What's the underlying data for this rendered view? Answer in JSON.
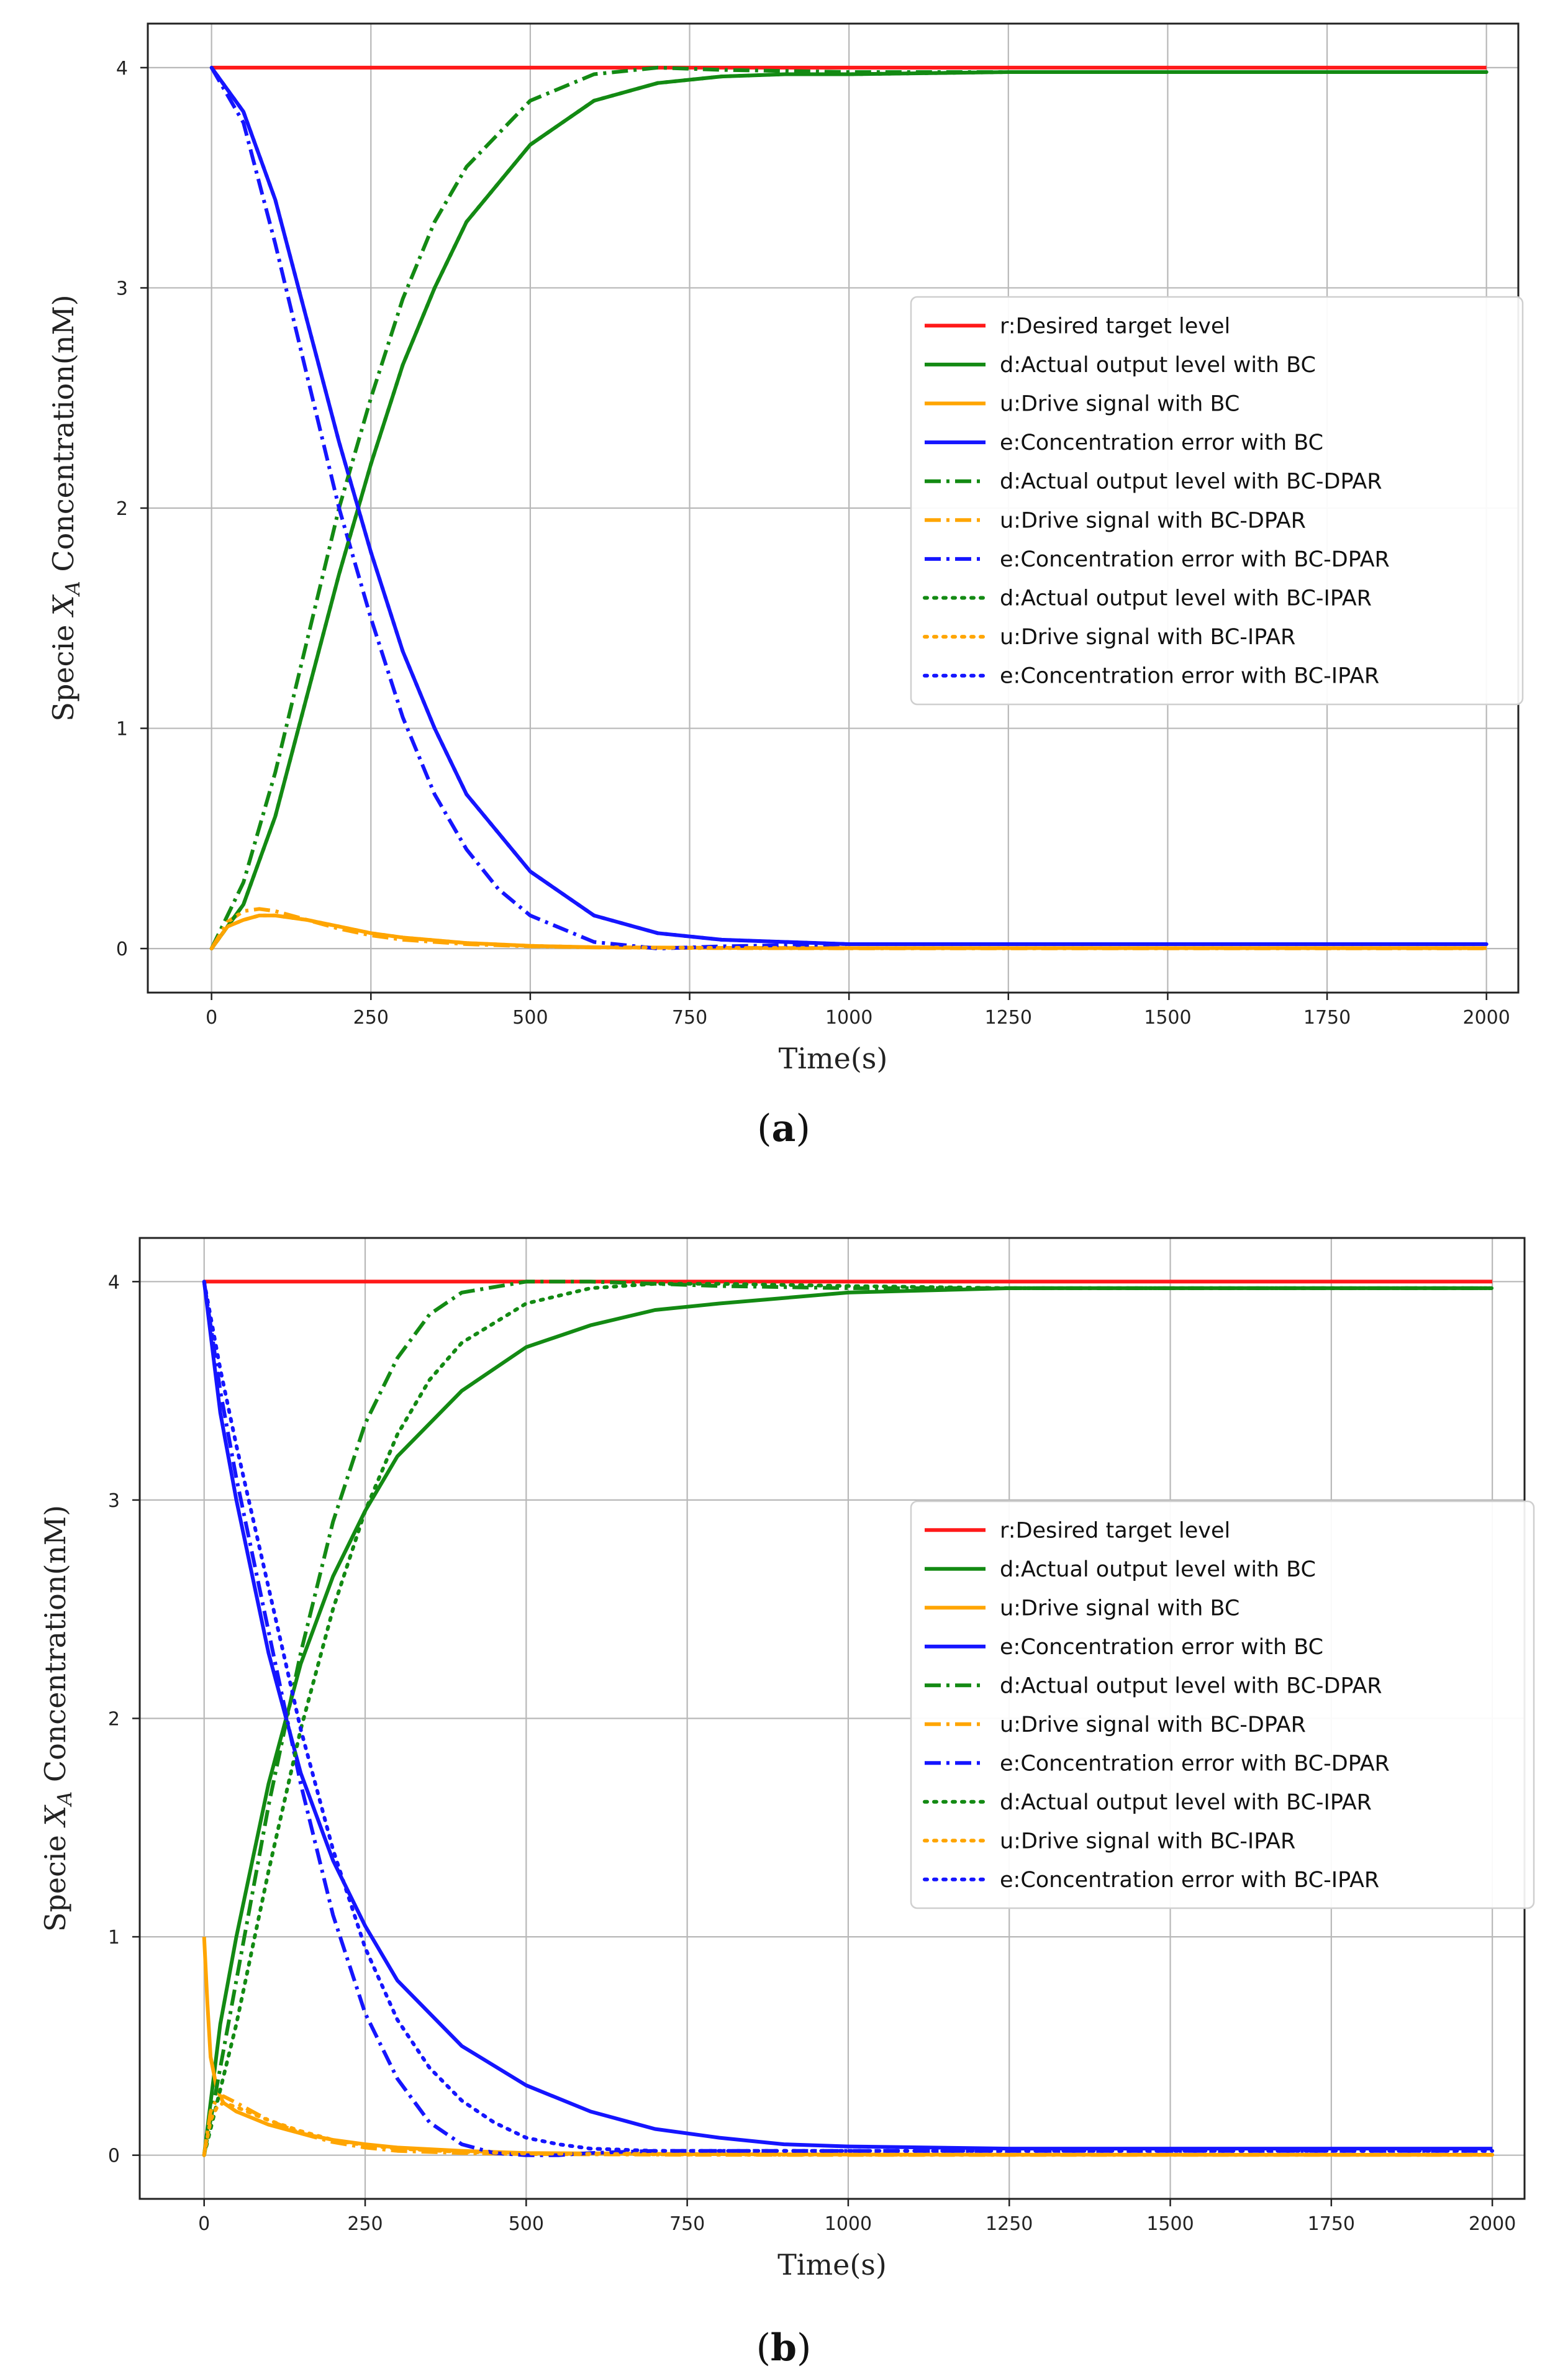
{
  "captions": [
    "(a)",
    "(b)"
  ],
  "chart_data": [
    {
      "panel": "a",
      "type": "line",
      "title": "",
      "xlabel": "Time(s)",
      "ylabel": "Specie X_A Concentration(nM)",
      "ylabel_parts": {
        "prefix": "Specie ",
        "symbol": "X",
        "subscript": "A",
        "suffix": " Concentration(nM)"
      },
      "xlim": [
        -100,
        2050
      ],
      "ylim": [
        -0.2,
        4.2
      ],
      "xticks": [
        0,
        250,
        500,
        750,
        1000,
        1250,
        1500,
        1750,
        2000
      ],
      "yticks": [
        0,
        1,
        2,
        3,
        4
      ],
      "grid": true,
      "legend_position": "center-right",
      "series": [
        {
          "name": "r:Desired target level",
          "color": "#ff1a1a",
          "style": "solid",
          "x": [
            0,
            2000
          ],
          "y": [
            4,
            4
          ]
        },
        {
          "name": "d:Actual output level with BC",
          "color": "#138a13",
          "style": "solid",
          "x": [
            0,
            50,
            100,
            150,
            200,
            250,
            300,
            350,
            400,
            500,
            600,
            700,
            800,
            900,
            1000,
            1250,
            1500,
            1750,
            2000
          ],
          "y": [
            0,
            0.2,
            0.6,
            1.15,
            1.7,
            2.2,
            2.65,
            3.0,
            3.3,
            3.65,
            3.85,
            3.93,
            3.96,
            3.97,
            3.97,
            3.98,
            3.98,
            3.98,
            3.98
          ]
        },
        {
          "name": "u:Drive signal with BC",
          "color": "#ffa500",
          "style": "solid",
          "x": [
            0,
            25,
            50,
            75,
            100,
            150,
            200,
            250,
            300,
            400,
            500,
            600,
            800,
            1000,
            1500,
            2000
          ],
          "y": [
            0,
            0.1,
            0.13,
            0.15,
            0.15,
            0.13,
            0.1,
            0.07,
            0.05,
            0.025,
            0.012,
            0.006,
            0.003,
            0.002,
            0.002,
            0.002
          ]
        },
        {
          "name": "e:Concentration error with BC",
          "color": "#1515ff",
          "style": "solid",
          "x": [
            0,
            50,
            100,
            150,
            200,
            250,
            300,
            350,
            400,
            500,
            600,
            700,
            800,
            900,
            1000,
            1250,
            1500,
            1750,
            2000
          ],
          "y": [
            4,
            3.8,
            3.4,
            2.85,
            2.3,
            1.8,
            1.35,
            1.0,
            0.7,
            0.35,
            0.15,
            0.07,
            0.04,
            0.03,
            0.02,
            0.02,
            0.02,
            0.02,
            0.02
          ]
        },
        {
          "name": "d:Actual output level with BC-DPAR",
          "color": "#138a13",
          "style": "dashdot",
          "x": [
            0,
            50,
            100,
            150,
            200,
            250,
            300,
            350,
            400,
            500,
            600,
            700,
            800,
            1000,
            1250,
            1500,
            1750,
            2000
          ],
          "y": [
            0,
            0.3,
            0.8,
            1.4,
            2.0,
            2.5,
            2.95,
            3.3,
            3.55,
            3.85,
            3.97,
            4.0,
            3.99,
            3.98,
            3.98,
            3.98,
            3.98,
            3.98
          ]
        },
        {
          "name": "u:Drive signal with BC-DPAR",
          "color": "#ffa500",
          "style": "dashdot",
          "x": [
            0,
            25,
            50,
            75,
            100,
            150,
            200,
            250,
            300,
            400,
            500,
            600,
            800,
            1000,
            1500,
            2000
          ],
          "y": [
            0,
            0.12,
            0.17,
            0.18,
            0.17,
            0.13,
            0.09,
            0.06,
            0.04,
            0.02,
            0.01,
            0.005,
            0.002,
            0.001,
            0.001,
            0.001
          ]
        },
        {
          "name": "e:Concentration error with BC-DPAR",
          "color": "#1515ff",
          "style": "dashdot",
          "x": [
            0,
            50,
            100,
            150,
            200,
            250,
            300,
            350,
            400,
            450,
            500,
            600,
            700,
            800,
            1000,
            1250,
            1500,
            1750,
            2000
          ],
          "y": [
            4,
            3.75,
            3.2,
            2.6,
            2.0,
            1.5,
            1.05,
            0.7,
            0.45,
            0.27,
            0.15,
            0.03,
            0.0,
            0.01,
            0.02,
            0.02,
            0.02,
            0.02,
            0.02
          ]
        },
        {
          "name": "d:Actual output level with BC-IPAR",
          "color": "#138a13",
          "style": "dotted",
          "x": [
            0,
            50,
            100,
            150,
            200,
            250,
            300,
            350,
            400,
            500,
            600,
            700,
            800,
            900,
            1000,
            1250,
            1500,
            1750,
            2000
          ],
          "y": [
            0,
            0.2,
            0.6,
            1.15,
            1.7,
            2.2,
            2.65,
            3.0,
            3.3,
            3.65,
            3.85,
            3.93,
            3.96,
            3.97,
            3.97,
            3.98,
            3.98,
            3.98,
            3.98
          ]
        },
        {
          "name": "u:Drive signal with BC-IPAR",
          "color": "#ffa500",
          "style": "dotted",
          "x": [
            0,
            25,
            50,
            75,
            100,
            150,
            200,
            250,
            300,
            400,
            500,
            600,
            800,
            1000,
            1500,
            2000
          ],
          "y": [
            0,
            0.1,
            0.13,
            0.15,
            0.15,
            0.13,
            0.1,
            0.07,
            0.05,
            0.025,
            0.012,
            0.006,
            0.003,
            0.002,
            0.002,
            0.002
          ]
        },
        {
          "name": "e:Concentration error with BC-IPAR",
          "color": "#1515ff",
          "style": "dotted",
          "x": [
            0,
            50,
            100,
            150,
            200,
            250,
            300,
            350,
            400,
            500,
            600,
            700,
            800,
            900,
            1000,
            1250,
            1500,
            1750,
            2000
          ],
          "y": [
            4,
            3.8,
            3.4,
            2.85,
            2.3,
            1.8,
            1.35,
            1.0,
            0.7,
            0.35,
            0.15,
            0.07,
            0.04,
            0.03,
            0.02,
            0.02,
            0.02,
            0.02,
            0.02
          ]
        }
      ]
    },
    {
      "panel": "b",
      "type": "line",
      "title": "",
      "xlabel": "Time(s)",
      "ylabel": "Specie X_A Concentration(nM)",
      "ylabel_parts": {
        "prefix": "Specie ",
        "symbol": "X",
        "subscript": "A",
        "suffix": " Concentration(nM)"
      },
      "xlim": [
        -100,
        2050
      ],
      "ylim": [
        -0.2,
        4.2
      ],
      "xticks": [
        0,
        250,
        500,
        750,
        1000,
        1250,
        1500,
        1750,
        2000
      ],
      "yticks": [
        0,
        1,
        2,
        3,
        4
      ],
      "grid": true,
      "legend_position": "center-right",
      "series": [
        {
          "name": "r:Desired target level",
          "color": "#ff1a1a",
          "style": "solid",
          "x": [
            0,
            2000
          ],
          "y": [
            4,
            4
          ]
        },
        {
          "name": "d:Actual output level with BC",
          "color": "#138a13",
          "style": "solid",
          "x": [
            0,
            25,
            50,
            100,
            150,
            200,
            250,
            300,
            400,
            500,
            600,
            700,
            800,
            1000,
            1250,
            1500,
            1750,
            2000
          ],
          "y": [
            0,
            0.6,
            1.0,
            1.7,
            2.25,
            2.65,
            2.95,
            3.2,
            3.5,
            3.7,
            3.8,
            3.87,
            3.9,
            3.95,
            3.97,
            3.97,
            3.97,
            3.97
          ]
        },
        {
          "name": "u:Drive signal with BC",
          "color": "#ffa500",
          "style": "solid",
          "x": [
            0,
            5,
            10,
            20,
            30,
            50,
            75,
            100,
            150,
            200,
            250,
            300,
            400,
            500,
            750,
            1000,
            1500,
            2000
          ],
          "y": [
            1.0,
            0.7,
            0.45,
            0.3,
            0.24,
            0.2,
            0.17,
            0.14,
            0.1,
            0.07,
            0.05,
            0.035,
            0.02,
            0.01,
            0.005,
            0.003,
            0.002,
            0.002
          ]
        },
        {
          "name": "e:Concentration error with BC",
          "color": "#1515ff",
          "style": "solid",
          "x": [
            0,
            25,
            50,
            100,
            150,
            200,
            250,
            300,
            400,
            500,
            600,
            700,
            800,
            900,
            1000,
            1250,
            1500,
            1750,
            2000
          ],
          "y": [
            4,
            3.4,
            3.0,
            2.3,
            1.75,
            1.35,
            1.05,
            0.8,
            0.5,
            0.32,
            0.2,
            0.12,
            0.08,
            0.05,
            0.04,
            0.03,
            0.03,
            0.03,
            0.03
          ]
        },
        {
          "name": "d:Actual output level with BC-DPAR",
          "color": "#138a13",
          "style": "dashdot",
          "x": [
            0,
            25,
            50,
            100,
            150,
            200,
            250,
            300,
            350,
            400,
            500,
            600,
            700,
            800,
            1000,
            1250,
            1500,
            1750,
            2000
          ],
          "y": [
            0,
            0.4,
            0.8,
            1.6,
            2.3,
            2.9,
            3.35,
            3.65,
            3.85,
            3.95,
            4.0,
            4.0,
            3.99,
            3.98,
            3.97,
            3.97,
            3.97,
            3.97,
            3.97
          ]
        },
        {
          "name": "u:Drive signal with BC-DPAR",
          "color": "#ffa500",
          "style": "dashdot",
          "x": [
            0,
            10,
            20,
            30,
            50,
            75,
            100,
            150,
            200,
            250,
            300,
            400,
            500,
            750,
            1000,
            1500,
            2000
          ],
          "y": [
            0,
            0.2,
            0.26,
            0.27,
            0.24,
            0.2,
            0.16,
            0.1,
            0.06,
            0.035,
            0.02,
            0.01,
            0.005,
            0.002,
            0.001,
            0.001,
            0.001
          ]
        },
        {
          "name": "e:Concentration error with BC-DPAR",
          "color": "#1515ff",
          "style": "dashdot",
          "x": [
            0,
            25,
            50,
            100,
            150,
            200,
            250,
            300,
            350,
            400,
            450,
            500,
            550,
            600,
            700,
            800,
            1000,
            1250,
            1500,
            1750,
            2000
          ],
          "y": [
            4,
            3.5,
            3.1,
            2.4,
            1.7,
            1.1,
            0.65,
            0.35,
            0.15,
            0.05,
            0.01,
            0.0,
            0.0,
            0.01,
            0.02,
            0.02,
            0.02,
            0.02,
            0.02,
            0.02,
            0.02
          ]
        },
        {
          "name": "d:Actual output level with BC-IPAR",
          "color": "#138a13",
          "style": "dotted",
          "x": [
            0,
            25,
            50,
            100,
            150,
            200,
            250,
            300,
            350,
            400,
            500,
            600,
            700,
            800,
            1000,
            1250,
            1500,
            1750,
            2000
          ],
          "y": [
            0,
            0.3,
            0.6,
            1.3,
            1.95,
            2.5,
            2.95,
            3.3,
            3.55,
            3.72,
            3.9,
            3.97,
            3.99,
            3.99,
            3.98,
            3.97,
            3.97,
            3.97,
            3.97
          ]
        },
        {
          "name": "u:Drive signal with BC-IPAR",
          "color": "#ffa500",
          "style": "dotted",
          "x": [
            0,
            10,
            20,
            30,
            50,
            75,
            100,
            150,
            200,
            250,
            300,
            400,
            500,
            750,
            1000,
            1500,
            2000
          ],
          "y": [
            0,
            0.16,
            0.22,
            0.24,
            0.22,
            0.19,
            0.16,
            0.11,
            0.07,
            0.045,
            0.03,
            0.015,
            0.008,
            0.003,
            0.002,
            0.002,
            0.002
          ]
        },
        {
          "name": "e:Concentration error with BC-IPAR",
          "color": "#1515ff",
          "style": "dotted",
          "x": [
            0,
            25,
            50,
            100,
            150,
            200,
            250,
            300,
            350,
            400,
            450,
            500,
            550,
            600,
            700,
            800,
            1000,
            1250,
            1500,
            1750,
            2000
          ],
          "y": [
            4,
            3.6,
            3.25,
            2.6,
            1.95,
            1.4,
            0.95,
            0.62,
            0.4,
            0.25,
            0.15,
            0.08,
            0.05,
            0.03,
            0.02,
            0.02,
            0.02,
            0.02,
            0.02,
            0.02,
            0.02
          ]
        }
      ]
    }
  ]
}
